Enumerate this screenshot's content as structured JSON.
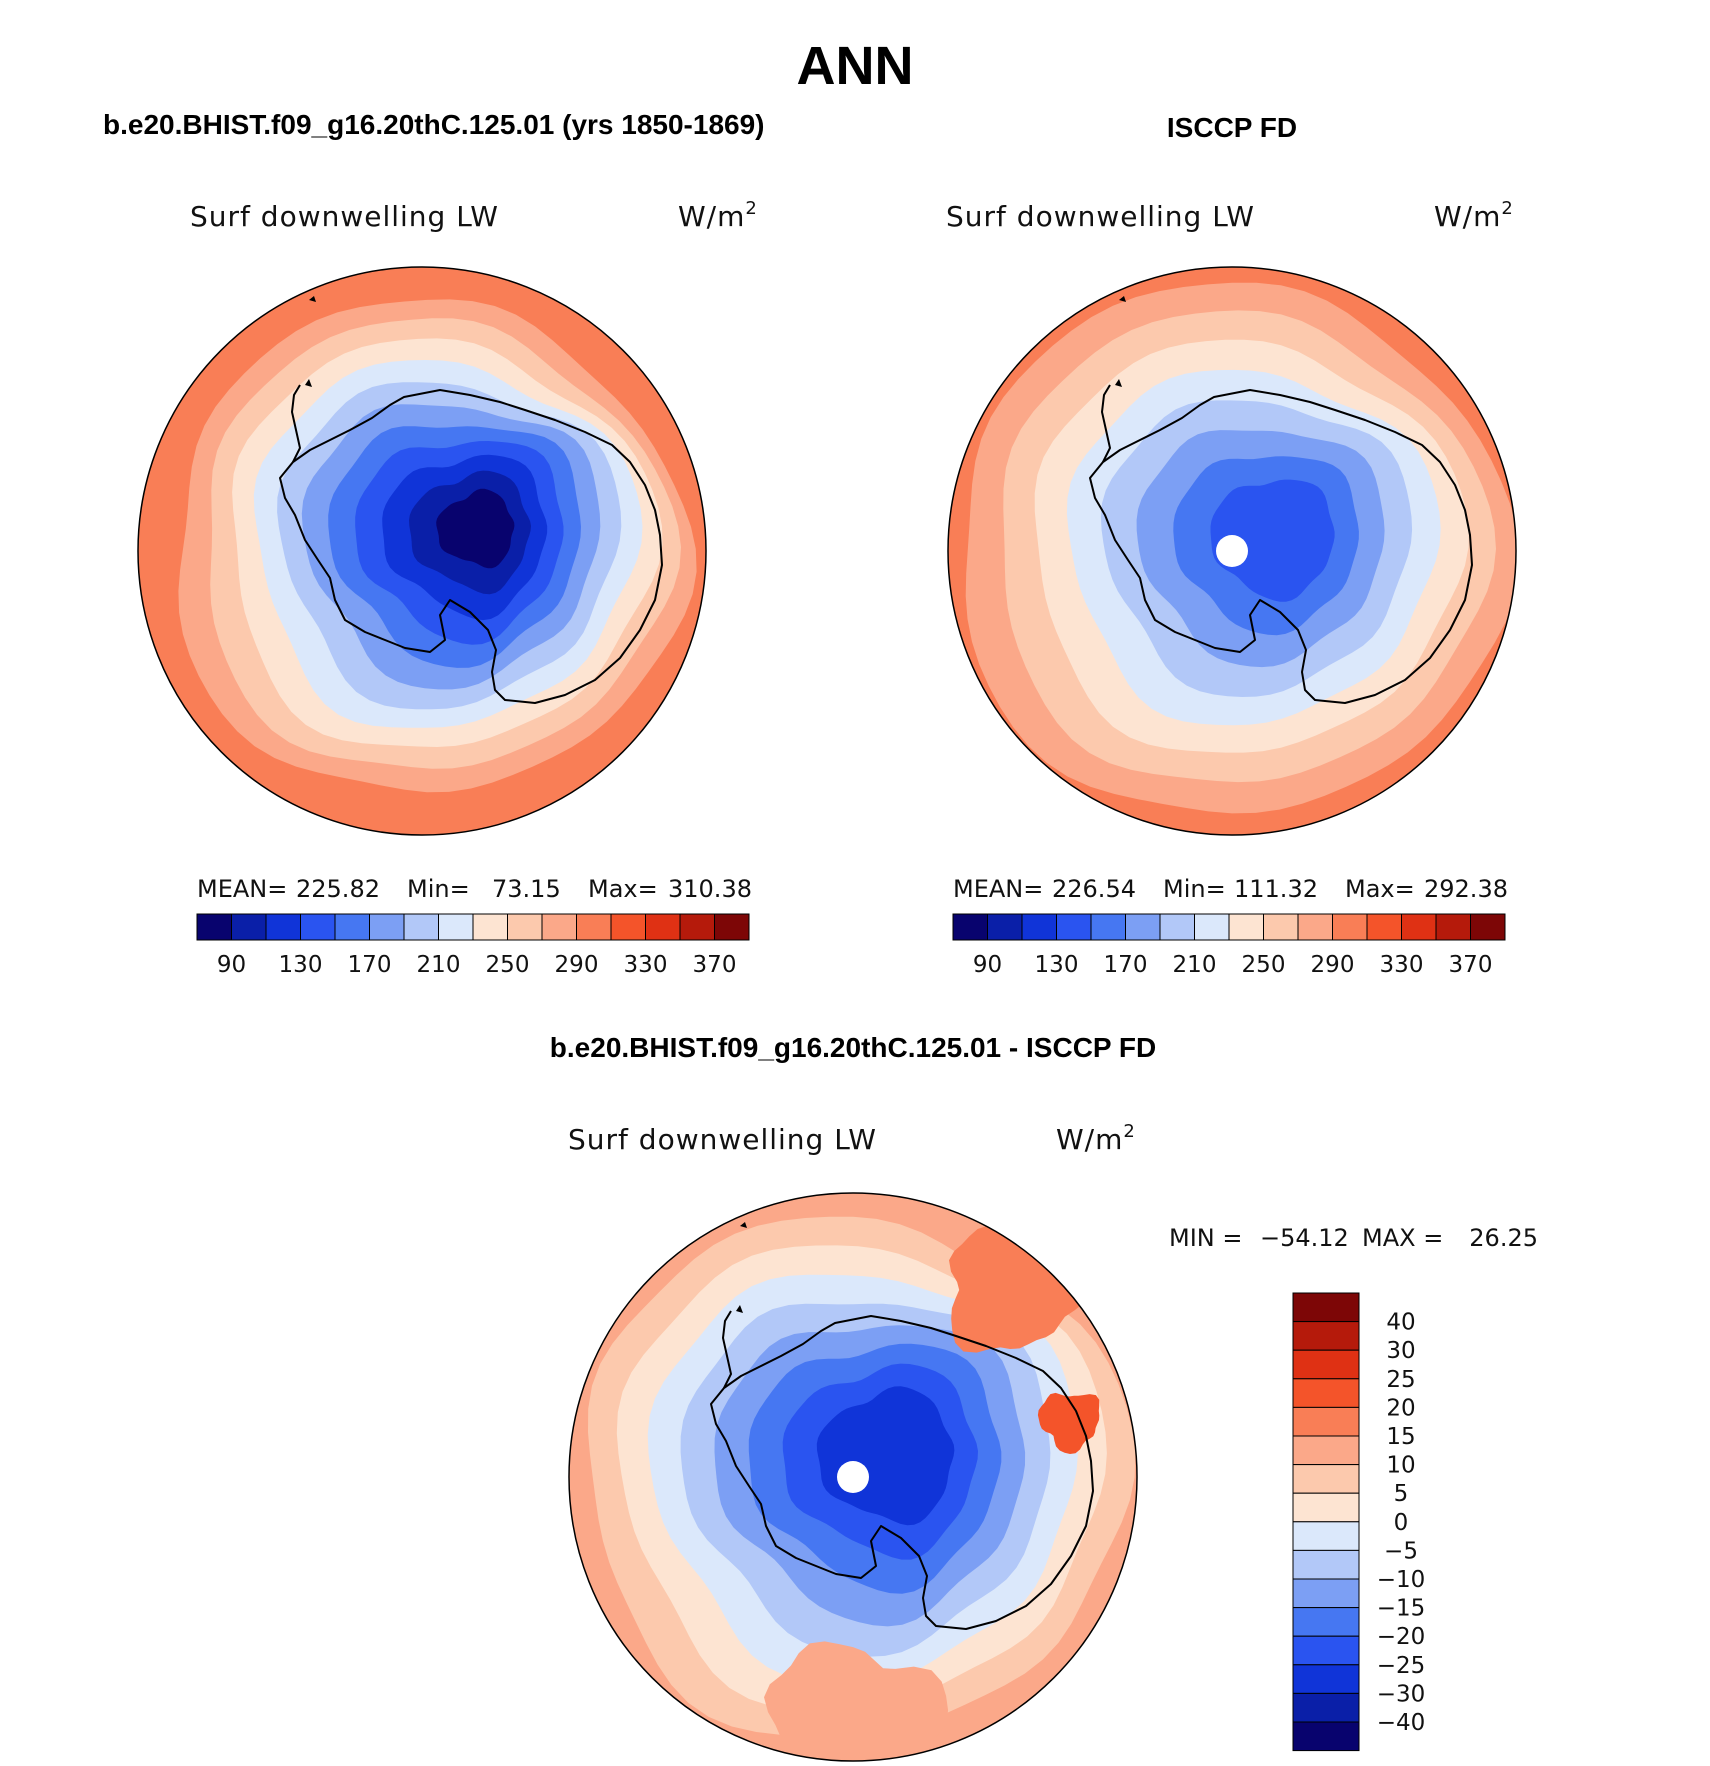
{
  "figure": {
    "title": "ANN",
    "palette": {
      "abs": [
        "#08036e",
        "#0a1fa8",
        "#1034d8",
        "#2a54f0",
        "#4677f2",
        "#7c9ff4",
        "#b2c8f8",
        "#dbe8fb",
        "#fde4d2",
        "#fcc9ad",
        "#fba889",
        "#f97e56",
        "#f4542a",
        "#df3114",
        "#b51a0b",
        "#7d0606"
      ],
      "diff": [
        "#08036e",
        "#0a1fa8",
        "#1034d8",
        "#2a54f0",
        "#4677f2",
        "#7c9ff4",
        "#b2c8f8",
        "#dbe8fb",
        "#fde4d2",
        "#fcc9ad",
        "#fba889",
        "#f97e56",
        "#f4542a",
        "#df3114",
        "#b51a0b",
        "#7d0606"
      ]
    }
  },
  "chart_data": [
    {
      "type": "heatmap",
      "projection": "south-polar-stereographic",
      "panel": "model",
      "title": "b.e20.BHIST.f09_g16.20thC.125.01 (yrs 1850-1869)",
      "variable": "Surf downwelling LW",
      "units": "W/m",
      "units_sup": "2",
      "stats": {
        "mean_label": "MEAN=",
        "mean": "225.82",
        "min_label": "Min=",
        "min": "73.15",
        "max_label": "Max=",
        "max": "310.38"
      },
      "contour_levels": [
        90,
        110,
        130,
        150,
        170,
        190,
        210,
        230,
        250,
        270,
        290,
        310,
        330,
        350,
        370
      ],
      "colorbar_labels": [
        "90",
        "130",
        "170",
        "210",
        "250",
        "290",
        "330",
        "370"
      ],
      "colorbar_orientation": "horizontal",
      "pole_missing": false,
      "field_rings": [
        {
          "value": 300,
          "level": 11
        },
        {
          "value": 285,
          "level": 10
        },
        {
          "value": 265,
          "level": 9
        },
        {
          "value": 245,
          "level": 8
        },
        {
          "value": 225,
          "level": 7
        },
        {
          "value": 205,
          "level": 6
        },
        {
          "value": 185,
          "level": 5
        },
        {
          "value": 160,
          "level": 4
        },
        {
          "value": 140,
          "level": 3
        },
        {
          "value": 120,
          "level": 2
        },
        {
          "value": 100,
          "level": 1
        },
        {
          "value": 80,
          "level": 0
        }
      ]
    },
    {
      "type": "heatmap",
      "projection": "south-polar-stereographic",
      "panel": "obs",
      "title": "ISCCP FD",
      "variable": "Surf downwelling LW",
      "units": "W/m",
      "units_sup": "2",
      "stats": {
        "mean_label": "MEAN=",
        "mean": "226.54",
        "min_label": "Min=",
        "min": "111.32",
        "max_label": "Max=",
        "max": "292.38"
      },
      "contour_levels": [
        90,
        110,
        130,
        150,
        170,
        190,
        210,
        230,
        250,
        270,
        290,
        310,
        330,
        350,
        370
      ],
      "colorbar_labels": [
        "90",
        "130",
        "170",
        "210",
        "250",
        "290",
        "330",
        "370"
      ],
      "colorbar_orientation": "horizontal",
      "pole_missing": true,
      "field_rings": [
        {
          "value": 285,
          "level": 10
        },
        {
          "value": 265,
          "level": 9
        },
        {
          "value": 245,
          "level": 8
        },
        {
          "value": 225,
          "level": 7
        },
        {
          "value": 205,
          "level": 6
        },
        {
          "value": 185,
          "level": 5
        },
        {
          "value": 160,
          "level": 4
        },
        {
          "value": 140,
          "level": 3
        }
      ]
    },
    {
      "type": "heatmap",
      "projection": "south-polar-stereographic",
      "panel": "difference",
      "title": "b.e20.BHIST.f09_g16.20thC.125.01 - ISCCP FD",
      "variable": "Surf downwelling LW",
      "units": "W/m",
      "units_sup": "2",
      "stats": {
        "min_label": "MIN =",
        "min": "−54.12",
        "max_label": "MAX =",
        "max": "26.25"
      },
      "contour_levels": [
        -40,
        -30,
        -25,
        -20,
        -15,
        -10,
        -5,
        0,
        5,
        10,
        15,
        20,
        25,
        30,
        40
      ],
      "colorbar_labels": [
        "40",
        "30",
        "25",
        "20",
        "15",
        "10",
        "5",
        "0",
        "−5",
        "−10",
        "−15",
        "−20",
        "−25",
        "−30",
        "−40"
      ],
      "colorbar_orientation": "vertical",
      "pole_missing": true,
      "field_rings": [
        {
          "value": 7,
          "level": 9
        },
        {
          "value": 2,
          "level": 8
        },
        {
          "value": -3,
          "level": 7
        },
        {
          "value": -8,
          "level": 6
        },
        {
          "value": -13,
          "level": 5
        },
        {
          "value": -18,
          "level": 4
        },
        {
          "value": -26,
          "level": 3
        },
        {
          "value": -35,
          "level": 2
        }
      ],
      "field_blobs": [
        {
          "value": 18,
          "level": 11,
          "region": "north-east"
        },
        {
          "value": 14,
          "level": 10,
          "region": "south"
        },
        {
          "value": 22,
          "level": 12,
          "region": "east"
        }
      ]
    }
  ]
}
